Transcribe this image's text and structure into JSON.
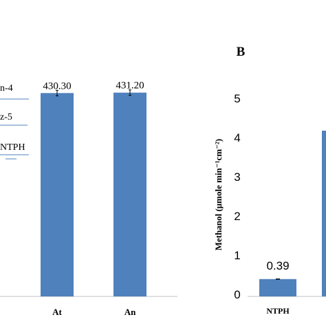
{
  "chart_data": [
    {
      "type": "bar",
      "categories": [
        "At",
        "An"
      ],
      "values": [
        430.3,
        431.2
      ],
      "value_labels": [
        "430.30",
        "431.20"
      ],
      "error_bars": true,
      "ylim": [
        0,
        500
      ],
      "bar_color": "#4f81bd",
      "partial_labels": [
        "n-4",
        "z-5",
        "NTPH"
      ]
    },
    {
      "panel_label": "B",
      "type": "bar",
      "categories": [
        "NTPH"
      ],
      "values": [
        0.39
      ],
      "value_labels": [
        "0.39"
      ],
      "error_bars": true,
      "ylabel": "Methanol (μmole min⁻¹cm⁻²)",
      "ylim": [
        0,
        5.5
      ],
      "yticks": [
        "0",
        "1",
        "2",
        "3",
        "4",
        "5"
      ],
      "bar_color": "#4f81bd"
    }
  ]
}
